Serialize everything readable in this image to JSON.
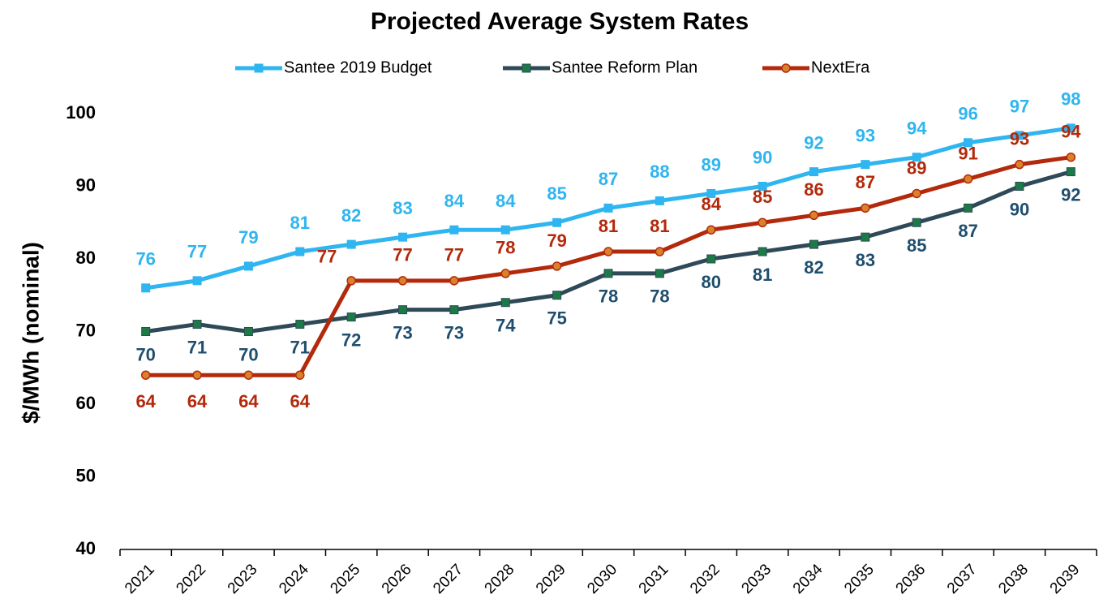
{
  "chart_data": {
    "type": "line",
    "title": "Projected Average System Rates",
    "y_label": "$/MWh (nominal)",
    "categories": [
      "2021",
      "2022",
      "2023",
      "2024",
      "2025",
      "2026",
      "2027",
      "2028",
      "2029",
      "2030",
      "2031",
      "2032",
      "2033",
      "2034",
      "2035",
      "2036",
      "2037",
      "2038",
      "2039"
    ],
    "series": [
      {
        "name": "Santee 2019 Budget",
        "color": "#2fb5f0",
        "marker": "square",
        "marker_color": "#2fb5f0",
        "label_color": "#2fb5f0",
        "values": [
          76,
          77,
          79,
          81,
          82,
          83,
          84,
          84,
          85,
          87,
          88,
          89,
          90,
          92,
          93,
          94,
          96,
          97,
          98
        ]
      },
      {
        "name": "Santee Reform Plan",
        "color": "#2e4a58",
        "marker": "square",
        "marker_color": "#1c7a47",
        "label_color": "#1f4e6e",
        "values": [
          70,
          71,
          70,
          71,
          72,
          73,
          73,
          74,
          75,
          78,
          78,
          80,
          81,
          82,
          83,
          85,
          87,
          90,
          92
        ]
      },
      {
        "name": "NextEra",
        "color": "#b3290b",
        "marker": "circle",
        "marker_color": "#d9822b",
        "label_color": "#b3290b",
        "values": [
          64,
          64,
          64,
          64,
          77,
          77,
          77,
          78,
          79,
          81,
          81,
          84,
          85,
          86,
          87,
          89,
          91,
          93,
          94
        ]
      }
    ],
    "ylim": [
      40,
      100
    ],
    "yticks": [
      40,
      50,
      60,
      70,
      80,
      90,
      100
    ],
    "grid": false
  }
}
